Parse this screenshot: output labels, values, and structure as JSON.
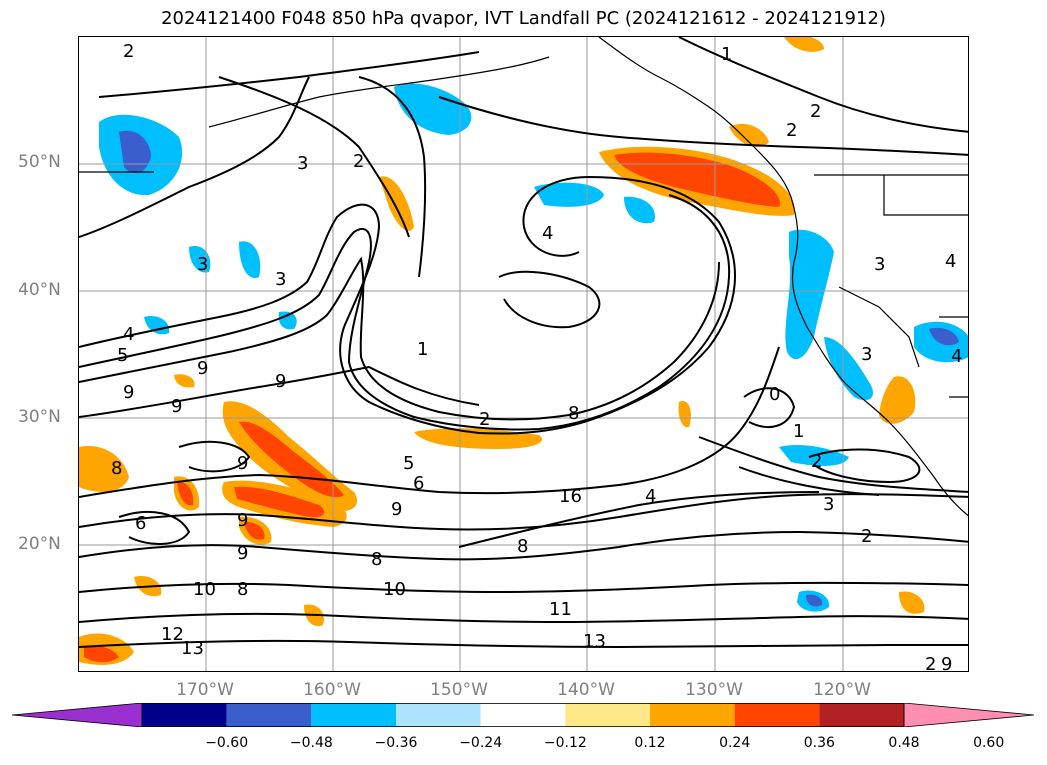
{
  "title": "2024121400 F048 850 hPa qvapor, IVT Landfall PC (2024121612 - 2024121912)",
  "lat_labels": [
    "50°N",
    "40°N",
    "30°N",
    "20°N"
  ],
  "lon_labels": [
    "170°W",
    "160°W",
    "150°W",
    "140°W",
    "130°W",
    "120°W"
  ],
  "contour_labels": [
    "2",
    "1",
    "2",
    "2",
    "3",
    "2",
    "4",
    "3",
    "3",
    "4",
    "5",
    "1",
    "9",
    "9",
    "9",
    "2",
    "8",
    "0",
    "1",
    "2",
    "3",
    "9",
    "5",
    "6",
    "9",
    "16",
    "4",
    "2",
    "6",
    "9",
    "8",
    "9",
    "8",
    "10",
    "8",
    "10",
    "11",
    "12",
    "13",
    "13",
    "3",
    "4",
    "3",
    "8",
    "9",
    "2",
    "9",
    "4"
  ],
  "colorbar": {
    "tick_labels": [
      "−0.60",
      "−0.48",
      "−0.36",
      "−0.24",
      "−0.12",
      "0.12",
      "0.24",
      "0.36",
      "0.48",
      "0.60"
    ],
    "colors": [
      "#9b30d0",
      "#00008b",
      "#3a5fcd",
      "#00bfff",
      "#aee3ff",
      "#ffffff",
      "#ffe88a",
      "#ffa500",
      "#ff4500",
      "#b22222",
      "#ff8fb0"
    ]
  }
}
